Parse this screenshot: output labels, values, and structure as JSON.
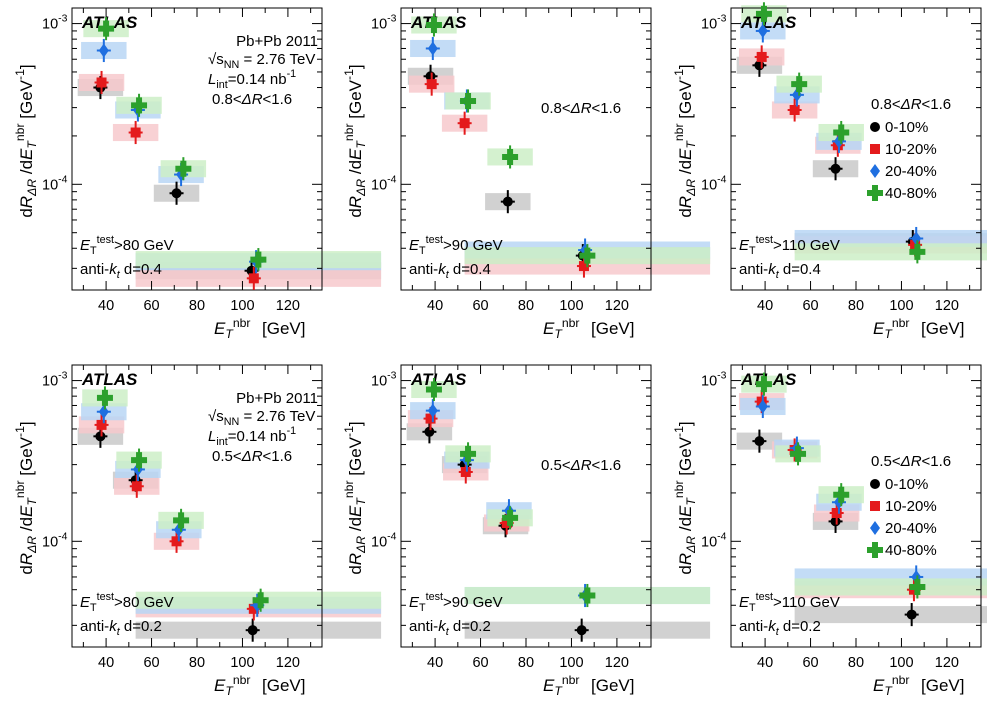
{
  "chart_data": [
    {
      "type": "scatter",
      "panel": "top-left",
      "ylabel": "dR_ΔR /dE_T^nbr [GeV^-1]",
      "xlabel": "E_T^nbr [GeV]",
      "yscale": "log",
      "ylim": [
        2.2e-05,
        0.00125
      ],
      "xlim": [
        25,
        135
      ],
      "x_ticks": [
        40,
        60,
        80,
        100,
        120
      ],
      "y_ticks": [
        {
          "value": 0.001,
          "label": "10^-3"
        },
        {
          "value": 0.0001,
          "label": "10^-4"
        }
      ],
      "experiment": "ATLAS",
      "collision": "Pb+Pb 2011",
      "energy": "√s_NN = 2.76 TeV",
      "luminosity": "L_int=0.14 nb^-1",
      "dr_range": "0.8<ΔR<1.6",
      "threshold": "E_T^test>80 GeV",
      "algorithm": "anti-k_t d=0.4",
      "series": [
        {
          "legend": "0-10%",
          "color": "#000000",
          "marker": "circle",
          "x": [
            37.5,
            71,
            104
          ],
          "y": [
            0.0004,
            8.8e-05,
            2.9e-05
          ]
        },
        {
          "legend": "10-20%",
          "color": "#e41a1c",
          "marker": "square",
          "x": [
            38,
            53,
            105
          ],
          "y": [
            0.00043,
            0.00021,
            2.6e-05
          ]
        },
        {
          "legend": "20-40%",
          "color": "#1f6fe0",
          "marker": "diamond",
          "x": [
            39,
            54,
            73,
            106
          ],
          "y": [
            0.00068,
            0.00029,
            0.000115,
            3.3e-05
          ]
        },
        {
          "legend": "40-80%",
          "color": "#2ca02c",
          "marker": "cross",
          "x": [
            40,
            54.5,
            74,
            107
          ],
          "y": [
            0.00093,
            0.00031,
            0.000125,
            3.4e-05
          ]
        }
      ]
    },
    {
      "type": "scatter",
      "panel": "top-middle",
      "ylabel": "dR_ΔR /dE_T^nbr [GeV^-1]",
      "xlabel": "E_T^nbr [GeV]",
      "yscale": "log",
      "ylim": [
        2.2e-05,
        0.00125
      ],
      "xlim": [
        25,
        135
      ],
      "x_ticks": [
        40,
        60,
        80,
        100,
        120
      ],
      "y_ticks": [
        {
          "value": 0.001,
          "label": "10^-3"
        },
        {
          "value": 0.0001,
          "label": "10^-4"
        }
      ],
      "experiment": "ATLAS",
      "dr_range": "0.8<ΔR<1.6",
      "threshold": "E_T^test>90 GeV",
      "algorithm": "anti-k_t d=0.4",
      "series": [
        {
          "legend": "0-10%",
          "color": "#000000",
          "marker": "circle",
          "x": [
            38,
            72,
            105
          ],
          "y": [
            0.00047,
            7.8e-05,
            3.6e-05
          ]
        },
        {
          "legend": "10-20%",
          "color": "#e41a1c",
          "marker": "square",
          "x": [
            38.5,
            53,
            105.5
          ],
          "y": [
            0.00042,
            0.00024,
            3.1e-05
          ]
        },
        {
          "legend": "20-40%",
          "color": "#1f6fe0",
          "marker": "diamond",
          "x": [
            39,
            54,
            106
          ],
          "y": [
            0.0007,
            0.00033,
            3.9e-05
          ]
        },
        {
          "legend": "40-80%",
          "color": "#2ca02c",
          "marker": "cross",
          "x": [
            39.5,
            54.5,
            73,
            107
          ],
          "y": [
            0.00098,
            0.00033,
            0.000148,
            3.6e-05
          ]
        }
      ]
    },
    {
      "type": "scatter",
      "panel": "top-right",
      "ylabel": "dR_ΔR /dE_T^nbr [GeV^-1]",
      "xlabel": "E_T^nbr [GeV]",
      "yscale": "log",
      "ylim": [
        2.2e-05,
        0.00125
      ],
      "xlim": [
        25,
        135
      ],
      "x_ticks": [
        40,
        60,
        80,
        100,
        120
      ],
      "y_ticks": [
        {
          "value": 0.001,
          "label": "10^-3"
        },
        {
          "value": 0.0001,
          "label": "10^-4"
        }
      ],
      "experiment": "ATLAS",
      "dr_range": "0.8<ΔR<1.6",
      "threshold": "E_T^test>110 GeV",
      "algorithm": "anti-k_t d=0.4",
      "legend_position": "right",
      "series": [
        {
          "legend": "0-10%",
          "color": "#000000",
          "marker": "circle",
          "x": [
            37.5,
            71,
            105
          ],
          "y": [
            0.00055,
            0.000125,
            4.4e-05
          ]
        },
        {
          "legend": "10-20%",
          "color": "#e41a1c",
          "marker": "square",
          "x": [
            38.5,
            53,
            72,
            106
          ],
          "y": [
            0.00062,
            0.00029,
            0.000175,
            4.2e-05
          ]
        },
        {
          "legend": "20-40%",
          "color": "#1f6fe0",
          "marker": "diamond",
          "x": [
            39,
            54,
            72.5,
            106.5
          ],
          "y": [
            0.0009,
            0.00036,
            0.000185,
            4.6e-05
          ]
        },
        {
          "legend": "40-80%",
          "color": "#2ca02c",
          "marker": "cross",
          "x": [
            39.5,
            55,
            73.5,
            107
          ],
          "y": [
            0.00115,
            0.00042,
            0.00021,
            3.8e-05
          ]
        }
      ]
    },
    {
      "type": "scatter",
      "panel": "bottom-left",
      "ylabel": "dR_ΔR /dE_T^nbr [GeV^-1]",
      "xlabel": "E_T^nbr [GeV]",
      "yscale": "log",
      "ylim": [
        2.2e-05,
        0.00125
      ],
      "xlim": [
        25,
        135
      ],
      "x_ticks": [
        40,
        60,
        80,
        100,
        120
      ],
      "y_ticks": [
        {
          "value": 0.001,
          "label": "10^-3"
        },
        {
          "value": 0.0001,
          "label": "10^-4"
        }
      ],
      "experiment": "ATLAS",
      "collision": "Pb+Pb 2011",
      "energy": "√s_NN = 2.76 TeV",
      "luminosity": "L_int=0.14 nb^-1",
      "dr_range": "0.5<ΔR<1.6",
      "threshold": "E_T^test>80 GeV",
      "algorithm": "anti-k_t d=0.2",
      "series": [
        {
          "legend": "0-10%",
          "color": "#000000",
          "marker": "circle",
          "x": [
            37.5,
            53,
            104.5
          ],
          "y": [
            0.00045,
            0.00024,
            2.8e-05
          ]
        },
        {
          "legend": "10-20%",
          "color": "#e41a1c",
          "marker": "square",
          "x": [
            38,
            53.5,
            71,
            105
          ],
          "y": [
            0.00053,
            0.00022,
            0.0001,
            3.8e-05
          ]
        },
        {
          "legend": "20-40%",
          "color": "#1f6fe0",
          "marker": "diamond",
          "x": [
            39,
            54,
            72,
            106.5
          ],
          "y": [
            0.00064,
            0.00028,
            0.000118,
            4e-05
          ]
        },
        {
          "legend": "40-80%",
          "color": "#2ca02c",
          "marker": "cross",
          "x": [
            39.5,
            54.5,
            73,
            108
          ],
          "y": [
            0.00078,
            0.00032,
            0.000135,
            4.3e-05
          ]
        }
      ]
    },
    {
      "type": "scatter",
      "panel": "bottom-middle",
      "ylabel": "dR_ΔR /dE_T^nbr [GeV^-1]",
      "xlabel": "E_T^nbr [GeV]",
      "yscale": "log",
      "ylim": [
        2.2e-05,
        0.00125
      ],
      "xlim": [
        25,
        135
      ],
      "x_ticks": [
        40,
        60,
        80,
        100,
        120
      ],
      "y_ticks": [
        {
          "value": 0.001,
          "label": "10^-3"
        },
        {
          "value": 0.0001,
          "label": "10^-4"
        }
      ],
      "experiment": "ATLAS",
      "dr_range": "0.5<ΔR<1.6",
      "threshold": "E_T^test>90 GeV",
      "algorithm": "anti-k_t d=0.2",
      "series": [
        {
          "legend": "0-10%",
          "color": "#000000",
          "marker": "circle",
          "x": [
            37.5,
            53,
            71,
            104.5
          ],
          "y": [
            0.00048,
            0.0003,
            0.000125,
            2.8e-05
          ]
        },
        {
          "legend": "10-20%",
          "color": "#e41a1c",
          "marker": "square",
          "x": [
            38,
            53.5,
            71.5
          ],
          "y": [
            0.00058,
            0.00027,
            0.00013
          ]
        },
        {
          "legend": "20-40%",
          "color": "#1f6fe0",
          "marker": "diamond",
          "x": [
            39,
            54,
            72.5,
            106
          ],
          "y": [
            0.00065,
            0.00032,
            0.000155,
            4.6e-05
          ]
        },
        {
          "legend": "40-80%",
          "color": "#2ca02c",
          "marker": "cross",
          "x": [
            39.5,
            54.5,
            73,
            107
          ],
          "y": [
            0.00088,
            0.00035,
            0.00014,
            4.6e-05
          ]
        }
      ]
    },
    {
      "type": "scatter",
      "panel": "bottom-right",
      "ylabel": "dR_ΔR /dE_T^nbr [GeV^-1]",
      "xlabel": "E_T^nbr [GeV]",
      "yscale": "log",
      "ylim": [
        2.2e-05,
        0.00125
      ],
      "xlim": [
        25,
        135
      ],
      "x_ticks": [
        40,
        60,
        80,
        100,
        120
      ],
      "y_ticks": [
        {
          "value": 0.001,
          "label": "10^-3"
        },
        {
          "value": 0.0001,
          "label": "10^-4"
        }
      ],
      "experiment": "ATLAS",
      "dr_range": "0.5<ΔR<1.6",
      "threshold": "E_T^test>110 GeV",
      "algorithm": "anti-k_t d=0.2",
      "legend_position": "right",
      "series": [
        {
          "legend": "0-10%",
          "color": "#000000",
          "marker": "circle",
          "x": [
            37.5,
            71,
            104.5
          ],
          "y": [
            0.00042,
            0.000133,
            3.5e-05
          ]
        },
        {
          "legend": "10-20%",
          "color": "#e41a1c",
          "marker": "square",
          "x": [
            38.5,
            53,
            71.5,
            105.5
          ],
          "y": [
            0.00074,
            0.00037,
            0.00015,
            5e-05
          ]
        },
        {
          "legend": "20-40%",
          "color": "#1f6fe0",
          "marker": "diamond",
          "x": [
            39,
            54,
            72.5,
            106.5
          ],
          "y": [
            0.00069,
            0.00038,
            0.000175,
            6e-05
          ]
        },
        {
          "legend": "40-80%",
          "color": "#2ca02c",
          "marker": "cross",
          "x": [
            39.5,
            54.5,
            73.5,
            107
          ],
          "y": [
            0.00095,
            0.00035,
            0.000195,
            5.2e-05
          ]
        }
      ]
    }
  ]
}
